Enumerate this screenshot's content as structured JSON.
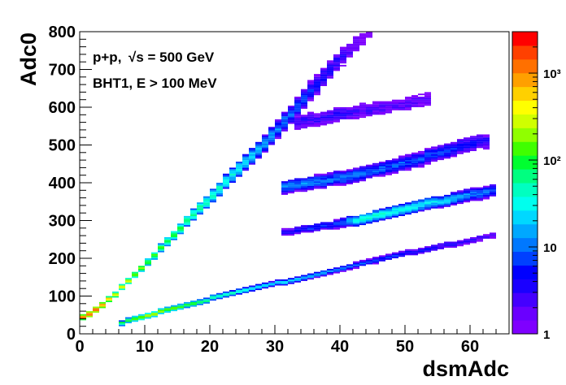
{
  "chart_data": {
    "type": "heatmap",
    "xlabel": "dsmAdc",
    "ylabel": "Adc0",
    "xlim": [
      0,
      66
    ],
    "ylim": [
      0,
      800
    ],
    "x_ticks": [
      "0",
      "10",
      "20",
      "30",
      "40",
      "50",
      "60"
    ],
    "y_ticks": [
      "0",
      "100",
      "200",
      "300",
      "400",
      "500",
      "600",
      "700",
      "800"
    ],
    "annotations": [
      "p+p,",
      "√s = 500 GeV",
      "BHT1, E > 100 MeV"
    ],
    "colorbar": {
      "scale": "log",
      "range": [
        1,
        3000
      ],
      "tick_labels": [
        "1",
        "10",
        "10²",
        "10³"
      ],
      "colors": [
        "#7f00ff",
        "#6a00ff",
        "#4400ff",
        "#1a00ff",
        "#0000ff",
        "#0040ff",
        "#0078ff",
        "#00a8ff",
        "#00d8ff",
        "#00ffee",
        "#00ffc0",
        "#00ff80",
        "#00ff30",
        "#40ff00",
        "#90ff00",
        "#d0ff00",
        "#ffff00",
        "#ffd000",
        "#ffa000",
        "#ff7000",
        "#ff4000",
        "#ff0000"
      ]
    },
    "bands": [
      {
        "name": "diagonal",
        "points": [
          [
            0,
            35
          ],
          [
            2,
            55
          ],
          [
            5,
            95
          ],
          [
            10,
            180
          ],
          [
            15,
            270
          ],
          [
            20,
            355
          ],
          [
            25,
            445
          ],
          [
            30,
            530
          ],
          [
            35,
            630
          ],
          [
            40,
            725
          ],
          [
            42,
            760
          ],
          [
            45,
            800
          ]
        ],
        "density": [
          900,
          1500,
          400,
          120,
          80,
          50,
          25,
          12,
          6,
          3,
          2,
          1
        ]
      },
      {
        "name": "lower",
        "points": [
          [
            6,
            25
          ],
          [
            10,
            45
          ],
          [
            20,
            90
          ],
          [
            30,
            130
          ],
          [
            40,
            170
          ],
          [
            50,
            210
          ],
          [
            60,
            245
          ],
          [
            64,
            260
          ]
        ],
        "density": [
          60,
          200,
          60,
          25,
          10,
          5,
          3,
          2
        ]
      },
      {
        "name": "middle",
        "points": [
          [
            31,
            265
          ],
          [
            40,
            290
          ],
          [
            44,
            305
          ],
          [
            50,
            330
          ],
          [
            60,
            365
          ],
          [
            64,
            380
          ]
        ],
        "density": [
          4,
          6,
          40,
          30,
          12,
          8
        ]
      },
      {
        "name": "upper",
        "points": [
          [
            31,
            385
          ],
          [
            40,
            410
          ],
          [
            50,
            450
          ],
          [
            60,
            500
          ],
          [
            63,
            510
          ]
        ],
        "density": [
          12,
          10,
          8,
          5,
          3
        ]
      },
      {
        "name": "top",
        "points": [
          [
            33,
            555
          ],
          [
            40,
            580
          ],
          [
            50,
            605
          ],
          [
            54,
            620
          ]
        ],
        "density": [
          3,
          3,
          2,
          2
        ]
      }
    ]
  }
}
